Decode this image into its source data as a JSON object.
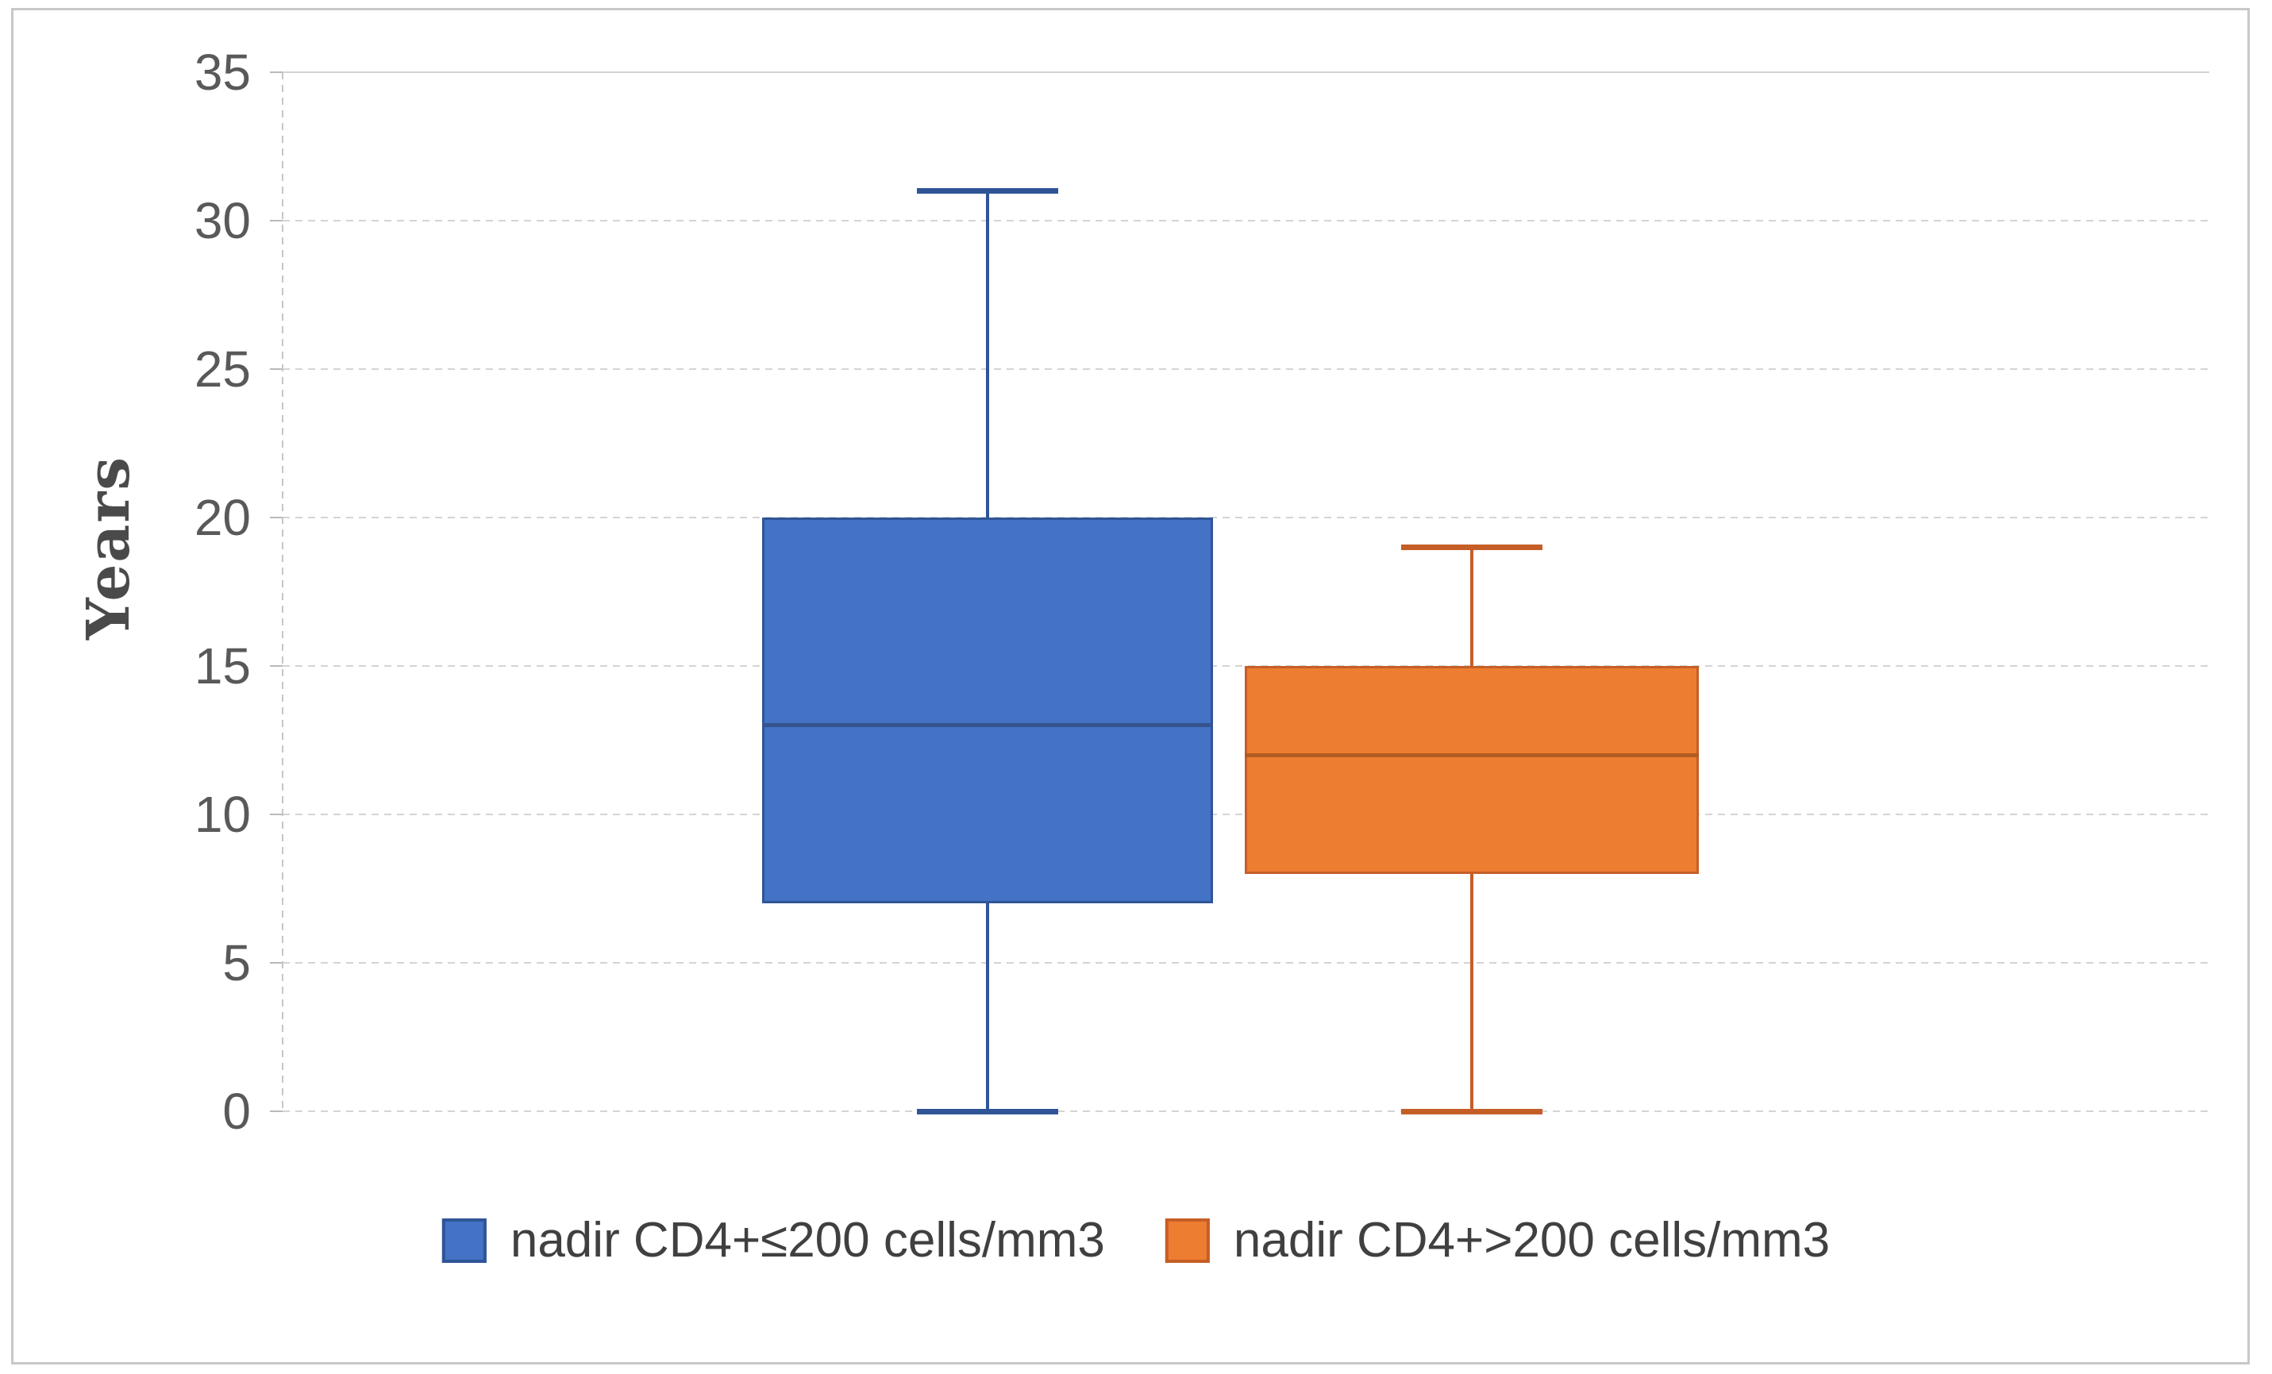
{
  "figure": {
    "background": "#ffffff",
    "border_color": "#c8c8c8",
    "gridline_color": "#d4d4d4",
    "axis_line_color": "#c6c6c6",
    "tick_label_color": "#595959",
    "legend_text_color": "#404040"
  },
  "chart_data": {
    "type": "boxplot",
    "title": "",
    "xlabel": "",
    "ylabel": "Years",
    "grid": true,
    "legend_position": "bottom",
    "y_axis": {
      "min": 0,
      "max": 35,
      "step": 5,
      "tick_labels": [
        "0",
        "5",
        "10",
        "15",
        "20",
        "25",
        "30",
        "35"
      ]
    },
    "series": [
      {
        "name": "nadir CD4+≤200 cells/mm3",
        "min": 0,
        "q1": 7,
        "median": 13,
        "q3": 20,
        "max": 31,
        "fill": "#4472C4",
        "border": "#2F5597",
        "median_color": "#35538E"
      },
      {
        "name": "nadir CD4+>200 cells/mm3",
        "min": 0,
        "q1": 8,
        "median": 12,
        "q3": 15,
        "max": 19,
        "fill": "#ED7D31",
        "border": "#C55E26",
        "median_color": "#B25B22"
      }
    ]
  }
}
